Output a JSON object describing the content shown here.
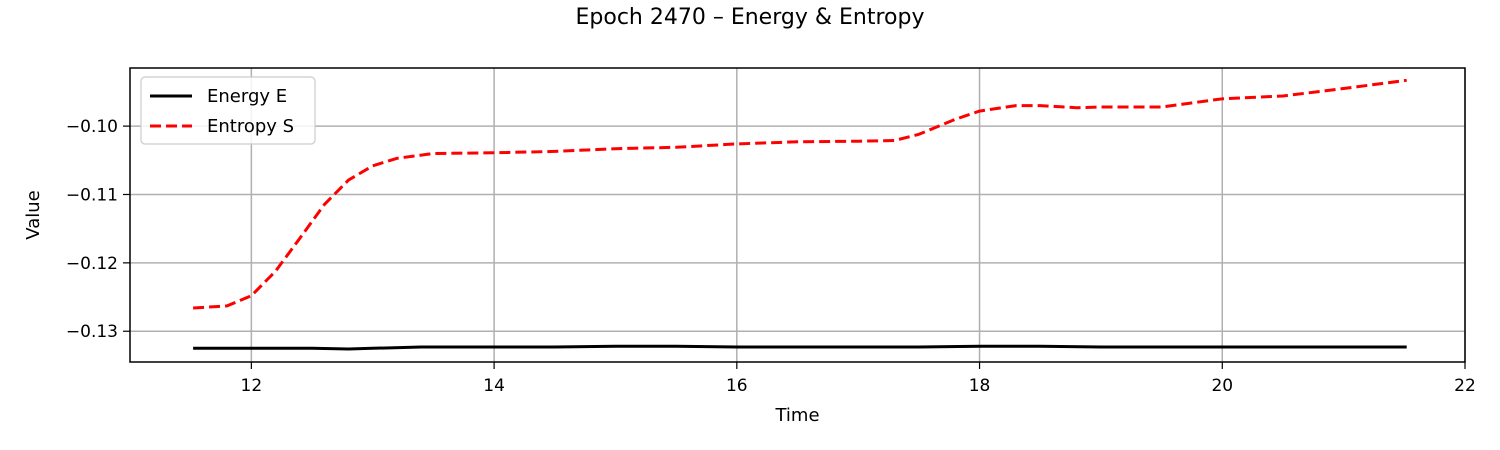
{
  "chart_data": {
    "type": "line",
    "title": "Epoch 2470 – Energy & Entropy",
    "xlabel": "Time",
    "ylabel": "Value",
    "xlim": [
      11.0,
      22.0
    ],
    "ylim": [
      -0.1345,
      -0.0915
    ],
    "x_ticks": [
      12,
      14,
      16,
      18,
      20,
      22
    ],
    "y_ticks": [
      -0.13,
      -0.12,
      -0.11,
      -0.1
    ],
    "x_tick_labels": [
      "12",
      "14",
      "16",
      "18",
      "20",
      "22"
    ],
    "y_tick_labels": [
      "−0.13",
      "−0.12",
      "−0.11",
      "−0.10"
    ],
    "grid": true,
    "legend_position": "top-left",
    "series": [
      {
        "name": "Energy E",
        "color": "#000000",
        "style": "solid",
        "x": [
          11.52,
          12.0,
          12.5,
          12.8,
          13.0,
          13.4,
          14.0,
          14.5,
          15.0,
          15.5,
          16.0,
          16.5,
          17.0,
          17.5,
          18.0,
          18.5,
          19.0,
          19.5,
          20.0,
          20.5,
          21.0,
          21.52
        ],
        "y": [
          -0.1325,
          -0.1325,
          -0.1325,
          -0.1326,
          -0.1325,
          -0.1323,
          -0.1323,
          -0.1323,
          -0.1322,
          -0.1322,
          -0.1323,
          -0.1323,
          -0.1323,
          -0.1323,
          -0.1322,
          -0.1322,
          -0.1323,
          -0.1323,
          -0.1323,
          -0.1323,
          -0.1323,
          -0.1323
        ]
      },
      {
        "name": "Entropy S",
        "color": "#ff0000",
        "style": "dashed",
        "x": [
          11.52,
          11.8,
          12.0,
          12.2,
          12.4,
          12.6,
          12.8,
          13.0,
          13.2,
          13.5,
          14.0,
          14.5,
          15.0,
          15.5,
          16.0,
          16.5,
          17.0,
          17.3,
          17.5,
          17.8,
          18.0,
          18.3,
          18.5,
          18.8,
          19.0,
          19.5,
          20.0,
          20.5,
          21.0,
          21.52
        ],
        "y": [
          -0.1266,
          -0.1263,
          -0.1248,
          -0.1212,
          -0.1164,
          -0.1115,
          -0.1079,
          -0.1058,
          -0.1047,
          -0.104,
          -0.1039,
          -0.1037,
          -0.1033,
          -0.1031,
          -0.1026,
          -0.1023,
          -0.1022,
          -0.1021,
          -0.1012,
          -0.099,
          -0.0978,
          -0.097,
          -0.097,
          -0.0973,
          -0.0972,
          -0.0972,
          -0.096,
          -0.0956,
          -0.0945,
          -0.0933
        ]
      }
    ]
  }
}
